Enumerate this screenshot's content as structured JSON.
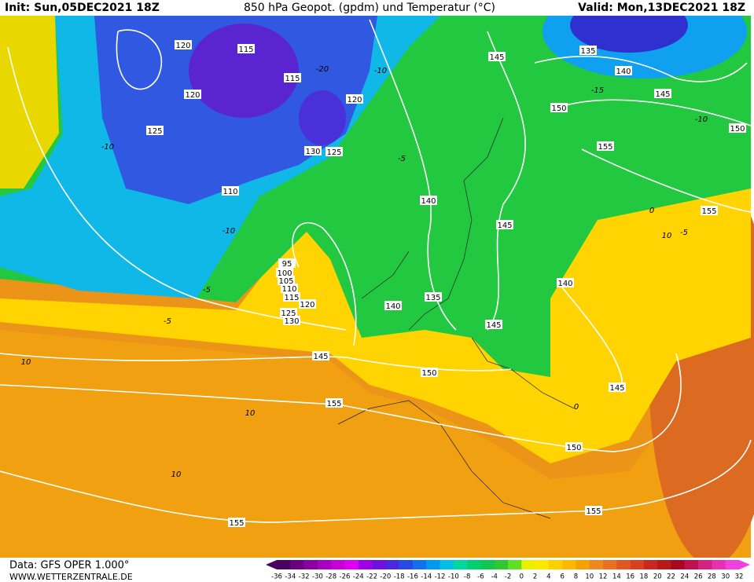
{
  "header": {
    "init": "Init: Sun,05DEC2021 18Z",
    "title": "850 hPa Geopot. (gpdm) und Temperatur (°C)",
    "valid": "Valid: Mon,13DEC2021 18Z"
  },
  "footer": {
    "data": "Data: GFS OPER 1.000°",
    "site": "WWW.WETTERZENTRALE.DE"
  },
  "colorbar": {
    "labels": [
      -36,
      -34,
      -32,
      -30,
      -28,
      -26,
      -24,
      -22,
      -20,
      -18,
      -16,
      -14,
      -12,
      -10,
      -8,
      -6,
      -4,
      -2,
      0,
      2,
      4,
      6,
      8,
      10,
      12,
      14,
      16,
      18,
      20,
      22,
      24,
      26,
      28,
      30,
      32
    ],
    "colors": [
      "#4a0060",
      "#6a0080",
      "#8a00a0",
      "#a800c0",
      "#c800d8",
      "#e000f0",
      "#a000e8",
      "#7010e0",
      "#4a28e0",
      "#2a48e8",
      "#1070f0",
      "#0098f0",
      "#00c0e8",
      "#00d8a0",
      "#00d070",
      "#10c850",
      "#30c830",
      "#60e020",
      "#e8f000",
      "#ffe800",
      "#ffd000",
      "#ffb800",
      "#f8a000",
      "#f08820",
      "#e87020",
      "#e05820",
      "#d84020",
      "#c82820",
      "#b81818",
      "#a80820",
      "#c01050",
      "#d82080",
      "#e830b0",
      "#f040e0"
    ]
  },
  "geopotential_labels": [
    120,
    115,
    115,
    120,
    120,
    125,
    130,
    125,
    110,
    140,
    145,
    135,
    140,
    145,
    150,
    150,
    155,
    155,
    145,
    95,
    100,
    105,
    110,
    115,
    120,
    125,
    130,
    135,
    140,
    140,
    145,
    145,
    150,
    145,
    155,
    150,
    155,
    155
  ],
  "temperature_labels": [
    -10,
    -10,
    -5,
    -5,
    -5,
    0,
    -5,
    10,
    10,
    10,
    10,
    -10,
    -15,
    -20,
    -10,
    0
  ]
}
